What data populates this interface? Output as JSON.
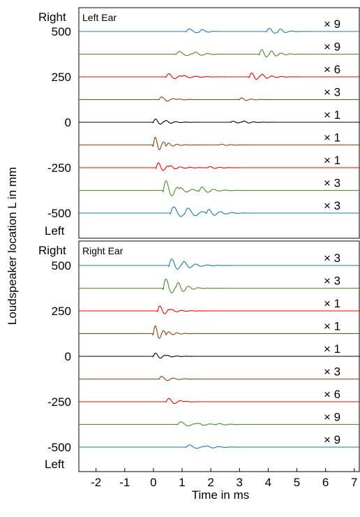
{
  "chart_data": {
    "type": "line",
    "layout": "two stacked panels sharing the time axis",
    "xlabel": "Time in ms",
    "ylabel": "Loudspeaker location L in mm",
    "xlim": [
      -2.6,
      7.2
    ],
    "x_ticks": [
      -2,
      -1,
      0,
      1,
      2,
      3,
      4,
      5,
      6,
      7
    ],
    "y_ticks": [
      500,
      250,
      0,
      -250,
      -500
    ],
    "y_end_labels": {
      "top": "Right",
      "bottom": "Left"
    },
    "gain_prefix": "×",
    "panels": [
      {
        "title": "Left Ear",
        "traces": [
          {
            "location": 500,
            "gain": "9",
            "color": "#1f77b4",
            "events": [
              {
                "t": 1.15,
                "a": 5,
                "f": 2.0,
                "d": 0.35
              },
              {
                "t": 1.6,
                "a": 3,
                "f": 2.5,
                "d": 0.25
              },
              {
                "t": 3.95,
                "a": 6,
                "f": 2.5,
                "d": 0.35
              },
              {
                "t": 4.35,
                "a": 3,
                "f": 3.0,
                "d": 0.2
              }
            ]
          },
          {
            "location": 375,
            "gain": "9",
            "color": "#4a8a2a",
            "events": [
              {
                "t": 0.8,
                "a": 5,
                "f": 2.0,
                "d": 0.4
              },
              {
                "t": 1.4,
                "a": 3,
                "f": 2.5,
                "d": 0.3
              },
              {
                "t": 3.7,
                "a": 8,
                "f": 3.0,
                "d": 0.35
              },
              {
                "t": 4.05,
                "a": 3,
                "f": 3.0,
                "d": 0.25
              }
            ]
          },
          {
            "location": 250,
            "gain": "6",
            "color": "#ff0000",
            "events": [
              {
                "t": 0.45,
                "a": 6,
                "f": 2.5,
                "d": 0.35
              },
              {
                "t": 1.0,
                "a": 3,
                "f": 2.5,
                "d": 0.4
              },
              {
                "t": 3.35,
                "a": 7,
                "f": 3.0,
                "d": 0.35
              },
              {
                "t": 3.75,
                "a": 3,
                "f": 3.0,
                "d": 0.3
              }
            ]
          },
          {
            "location": 125,
            "gain": "3",
            "color": "#8b4513",
            "events": [
              {
                "t": 0.2,
                "a": 5,
                "f": 2.5,
                "d": 0.35
              },
              {
                "t": 0.8,
                "a": 2,
                "f": 2.5,
                "d": 0.3
              },
              {
                "t": 3.0,
                "a": 3,
                "f": 3.0,
                "d": 0.3
              }
            ]
          },
          {
            "location": 0,
            "gain": "1",
            "color": "#000000",
            "events": [
              {
                "t": 0.0,
                "a": 6,
                "f": 3.0,
                "d": 0.3
              },
              {
                "t": 0.4,
                "a": 2,
                "f": 3.0,
                "d": 0.3
              },
              {
                "t": 2.7,
                "a": 2,
                "f": 3.0,
                "d": 0.3
              },
              {
                "t": 3.1,
                "a": 2,
                "f": 3.0,
                "d": 0.3
              }
            ]
          },
          {
            "location": -125,
            "gain": "1",
            "color": "#8b4513",
            "events": [
              {
                "t": 0.0,
                "a": 14,
                "f": 3.5,
                "d": 0.3
              },
              {
                "t": 0.45,
                "a": 6,
                "f": 3.5,
                "d": 0.3
              },
              {
                "t": 2.3,
                "a": 1.5,
                "f": 3.0,
                "d": 0.3
              }
            ]
          },
          {
            "location": -250,
            "gain": "1",
            "color": "#ff0000",
            "events": [
              {
                "t": 0.1,
                "a": 9,
                "f": 3.0,
                "d": 0.3
              },
              {
                "t": 0.55,
                "a": 4,
                "f": 3.0,
                "d": 0.35
              },
              {
                "t": 1.9,
                "a": 2,
                "f": 3.0,
                "d": 0.3
              }
            ]
          },
          {
            "location": -375,
            "gain": "3",
            "color": "#4a8a2a",
            "events": [
              {
                "t": 0.35,
                "a": 18,
                "f": 2.5,
                "d": 0.35
              },
              {
                "t": 0.9,
                "a": 6,
                "f": 2.5,
                "d": 0.4
              },
              {
                "t": 1.6,
                "a": 6,
                "f": 2.5,
                "d": 0.35
              }
            ]
          },
          {
            "location": -500,
            "gain": "3",
            "color": "#1f77b4",
            "events": [
              {
                "t": 0.6,
                "a": 12,
                "f": 2.0,
                "d": 0.4
              },
              {
                "t": 1.1,
                "a": 6,
                "f": 2.0,
                "d": 0.4
              },
              {
                "t": 1.85,
                "a": 8,
                "f": 2.5,
                "d": 0.35
              }
            ]
          }
        ]
      },
      {
        "title": "Right Ear",
        "traces": [
          {
            "location": 500,
            "gain": "3",
            "color": "#1f77b4",
            "events": [
              {
                "t": 0.55,
                "a": 12,
                "f": 2.5,
                "d": 0.35
              },
              {
                "t": 1.0,
                "a": 4,
                "f": 2.5,
                "d": 0.4
              }
            ]
          },
          {
            "location": 375,
            "gain": "3",
            "color": "#4a8a2a",
            "events": [
              {
                "t": 0.35,
                "a": 18,
                "f": 2.5,
                "d": 0.3
              },
              {
                "t": 0.8,
                "a": 6,
                "f": 3.0,
                "d": 0.35
              }
            ]
          },
          {
            "location": 250,
            "gain": "1",
            "color": "#ff0000",
            "events": [
              {
                "t": 0.15,
                "a": 9,
                "f": 3.0,
                "d": 0.3
              },
              {
                "t": 0.6,
                "a": 3,
                "f": 3.0,
                "d": 0.35
              }
            ]
          },
          {
            "location": 125,
            "gain": "1",
            "color": "#8b4513",
            "events": [
              {
                "t": 0.0,
                "a": 14,
                "f": 3.5,
                "d": 0.3
              },
              {
                "t": 0.45,
                "a": 6,
                "f": 3.5,
                "d": 0.3
              }
            ]
          },
          {
            "location": 0,
            "gain": "1",
            "color": "#000000",
            "events": [
              {
                "t": 0.0,
                "a": 6,
                "f": 3.0,
                "d": 0.3
              },
              {
                "t": 0.45,
                "a": 2,
                "f": 3.0,
                "d": 0.3
              }
            ]
          },
          {
            "location": -125,
            "gain": "3",
            "color": "#8b4513",
            "events": [
              {
                "t": 0.2,
                "a": 5,
                "f": 2.5,
                "d": 0.35
              }
            ]
          },
          {
            "location": -250,
            "gain": "6",
            "color": "#ff0000",
            "events": [
              {
                "t": 0.45,
                "a": 6,
                "f": 2.5,
                "d": 0.35
              },
              {
                "t": 1.05,
                "a": 2,
                "f": 2.5,
                "d": 0.3
              }
            ]
          },
          {
            "location": -375,
            "gain": "9",
            "color": "#4a8a2a",
            "events": [
              {
                "t": 0.85,
                "a": 5,
                "f": 2.0,
                "d": 0.4
              },
              {
                "t": 1.5,
                "a": 2,
                "f": 2.5,
                "d": 0.3
              },
              {
                "t": 2.2,
                "a": 2,
                "f": 2.5,
                "d": 0.3
              }
            ]
          },
          {
            "location": -500,
            "gain": "9",
            "color": "#1f77b4",
            "events": [
              {
                "t": 1.15,
                "a": 4,
                "f": 2.0,
                "d": 0.4
              },
              {
                "t": 1.8,
                "a": 2,
                "f": 2.5,
                "d": 0.35
              }
            ]
          }
        ]
      }
    ]
  }
}
